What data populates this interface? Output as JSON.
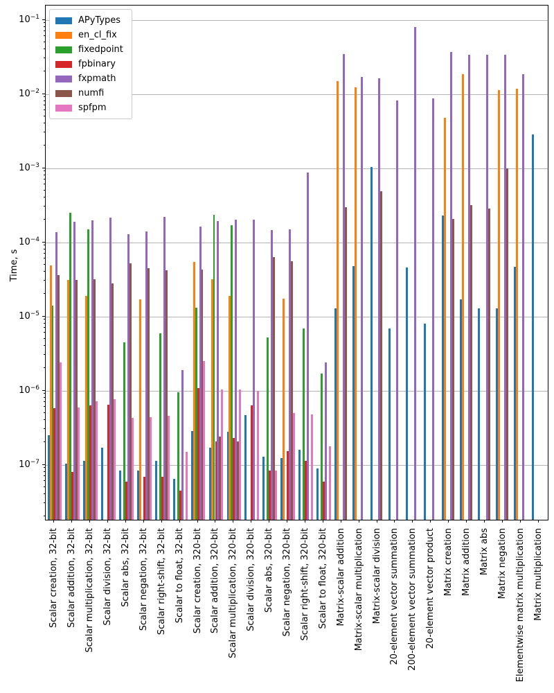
{
  "figure": {
    "background_color": "#ffffff"
  },
  "chart_data": {
    "type": "bar",
    "title": "",
    "xlabel": "",
    "ylabel": "Time, s",
    "yscale": "log",
    "ylim": [
      1.8e-08,
      0.157
    ],
    "grid": "horizontal major decades",
    "legend_position": "upper-left",
    "y_tick_exponents": [
      -1,
      -2,
      -3,
      -4,
      -5,
      -6,
      -7
    ],
    "categories": [
      "Scalar creation, 32-bit",
      "Scalar addition, 32-bit",
      "Scalar multiplication, 32-bit",
      "Scalar division, 32-bit",
      "Scalar abs, 32-bit",
      "Scalar negation, 32-bit",
      "Scalar right-shift, 32-bit",
      "Scalar to float, 32-bit",
      "Scalar creation, 320-bit",
      "Scalar addition, 320-bit",
      "Scalar multiplication, 320-bit",
      "Scalar division, 320-bit",
      "Scalar abs, 320-bit",
      "Scalar negation, 320-bit",
      "Scalar right-shift, 320-bit",
      "Scalar to float, 320-bit",
      "Matrix-scalar addition",
      "Matrix-scalar multiplication",
      "Matrix-scalar division",
      "20-element vector summation",
      "200-element vector summation",
      "20-element vector product",
      "Matrix creation",
      "Matrix addition",
      "Matrix abs",
      "Matrix negation",
      "Elementwise matrix multiplication",
      "Matrix multiplication"
    ],
    "series": [
      {
        "name": "APyTypes",
        "color": "#1f77b4",
        "values": [
          2.5e-07,
          1.05e-07,
          1.15e-07,
          1.7e-07,
          8.5e-08,
          8.5e-08,
          1.15e-07,
          6.5e-08,
          2.9e-07,
          1.7e-07,
          2.8e-07,
          4.7e-07,
          1.3e-07,
          1.25e-07,
          1.6e-07,
          9e-08,
          1.3e-05,
          4.8e-05,
          0.00105,
          7e-06,
          4.6e-05,
          8e-06,
          0.00023,
          1.7e-05,
          1.3e-05,
          1.3e-05,
          4.7e-05,
          0.0029
        ]
      },
      {
        "name": "en_cl_fix",
        "color": "#ff7f0e",
        "values": [
          4.9e-05,
          3.1e-05,
          1.9e-05,
          null,
          null,
          1.7e-05,
          null,
          null,
          5.5e-05,
          3.2e-05,
          1.9e-05,
          null,
          null,
          1.75e-05,
          null,
          null,
          0.015,
          0.0125,
          null,
          null,
          null,
          null,
          0.0048,
          0.0185,
          null,
          0.0115,
          0.012,
          null
        ]
      },
      {
        "name": "fixedpoint",
        "color": "#2ca02c",
        "values": [
          1.4e-05,
          0.00025,
          0.00015,
          null,
          4.5e-06,
          null,
          6e-06,
          9.5e-07,
          1.33e-05,
          0.000235,
          0.00017,
          null,
          5.2e-06,
          null,
          7e-06,
          1.7e-06,
          null,
          null,
          null,
          null,
          null,
          null,
          null,
          null,
          null,
          null,
          null,
          null
        ]
      },
      {
        "name": "fpbinary",
        "color": "#d62728",
        "values": [
          5.8e-07,
          8e-08,
          6.3e-07,
          6.5e-07,
          6e-08,
          7e-08,
          7e-08,
          4.5e-08,
          1.1e-06,
          2.1e-07,
          2.3e-07,
          6.3e-07,
          8.5e-08,
          1.55e-07,
          1.15e-07,
          6e-08,
          null,
          null,
          null,
          null,
          null,
          null,
          null,
          null,
          null,
          null,
          null,
          null
        ]
      },
      {
        "name": "fxpmath",
        "color": "#9467bd",
        "values": [
          0.000137,
          0.00019,
          0.0002,
          0.000215,
          0.00013,
          0.00014,
          0.00022,
          1.9e-06,
          0.000164,
          0.000196,
          0.000205,
          0.000205,
          0.000147,
          0.00015,
          0.00087,
          2.4e-06,
          0.035,
          0.017,
          0.0163,
          0.0082,
          0.08,
          0.0088,
          0.037,
          0.034,
          0.034,
          0.034,
          0.0185,
          null
        ]
      },
      {
        "name": "numfi",
        "color": "#8c564b",
        "values": [
          3.6e-05,
          3.1e-05,
          3.2e-05,
          2.8e-05,
          5.2e-05,
          4.5e-05,
          4.2e-05,
          null,
          4.3e-05,
          2.4e-07,
          2.1e-07,
          null,
          6.3e-05,
          5.6e-05,
          null,
          null,
          0.0003,
          null,
          0.00049,
          null,
          null,
          null,
          0.00021,
          0.00032,
          0.00029,
          0.00099,
          null,
          null
        ]
      },
      {
        "name": "spfpm",
        "color": "#e377c2",
        "values": [
          2.4e-06,
          6e-07,
          7.2e-07,
          7.7e-07,
          4.3e-07,
          4.4e-07,
          4.6e-07,
          1.5e-07,
          2.5e-06,
          1.05e-06,
          1.05e-06,
          1e-06,
          8.5e-08,
          5e-07,
          4.8e-07,
          1.8e-07,
          null,
          null,
          null,
          null,
          null,
          null,
          null,
          null,
          null,
          null,
          null,
          null
        ]
      }
    ]
  }
}
